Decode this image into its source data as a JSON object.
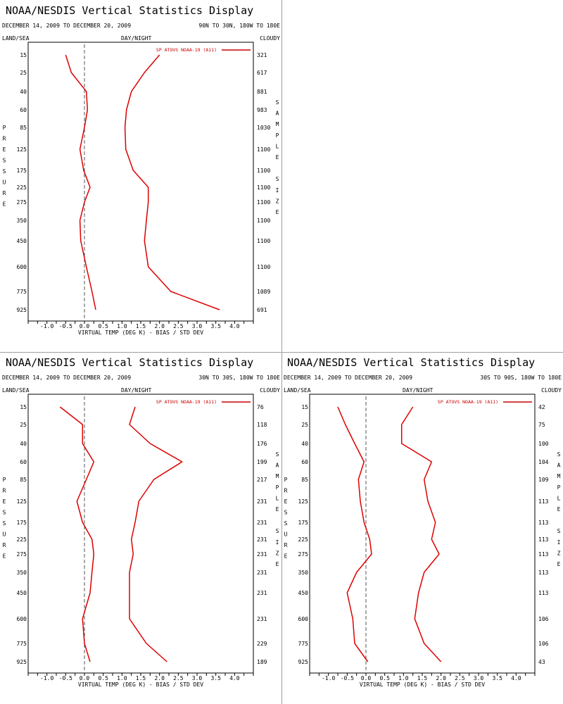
{
  "display_title": "NOAA/NESDIS Vertical Statistics Display",
  "date_range": "DECEMBER 14, 2009 TO DECEMBER 20, 2009",
  "col_labels": {
    "land_sea": "LAND/SEA",
    "day_night": "DAY/NIGHT",
    "cloudy": "CLOUDY"
  },
  "left_axis_label": "PRESSURE",
  "right_axis_label": "SAMPLE SIZE",
  "chart_data": [
    {
      "type": "line",
      "region": "90N TO 30N, 180W TO 180E",
      "xlabel": "VIRTUAL TEMP (DEG K) - BIAS / STD DEV",
      "ylabel": "PRESSURE",
      "xlim": [
        -1.5,
        4.5
      ],
      "x_ticks": [
        "-1.0",
        "-0.5",
        "0.0",
        "0.5",
        "1.0",
        "1.5",
        "2.0",
        "2.5",
        "3.0",
        "3.5",
        "4.0"
      ],
      "pressure_levels": [
        "15",
        "25",
        "40",
        "60",
        "85",
        "125",
        "175",
        "225",
        "275",
        "350",
        "450",
        "600",
        "775",
        "925"
      ],
      "sample_size": [
        "321",
        "617",
        "881",
        "983",
        "1030",
        "1100",
        "1100",
        "1100",
        "1100",
        "1100",
        "1100",
        "1100",
        "1089",
        "691"
      ],
      "legend": "SP ATOVS NOAA-19 (A11)",
      "series": [
        {
          "values": [
            -0.5,
            -0.35,
            0.05,
            0.08,
            0.0,
            -0.12,
            -0.02,
            0.15,
            0.0,
            -0.12,
            -0.1,
            0.05,
            0.2,
            0.3
          ]
        },
        {
          "values": [
            2.0,
            1.6,
            1.25,
            1.12,
            1.08,
            1.1,
            1.3,
            1.7,
            1.7,
            1.65,
            1.6,
            1.7,
            2.3,
            3.6
          ]
        }
      ]
    },
    {
      "type": "line",
      "region": "30N TO 30S, 180W TO 180E",
      "xlabel": "VIRTUAL TEMP (DEG K) - BIAS / STD DEV",
      "ylabel": "PRESSURE",
      "xlim": [
        -1.5,
        4.5
      ],
      "x_ticks": [
        "-1.0",
        "-0.5",
        "0.0",
        "0.5",
        "1.0",
        "1.5",
        "2.0",
        "2.5",
        "3.0",
        "3.5",
        "4.0"
      ],
      "pressure_levels": [
        "15",
        "25",
        "40",
        "60",
        "85",
        "125",
        "175",
        "225",
        "275",
        "350",
        "450",
        "600",
        "775",
        "925"
      ],
      "sample_size": [
        "76",
        "118",
        "176",
        "199",
        "217",
        "231",
        "231",
        "231",
        "231",
        "231",
        "231",
        "231",
        "229",
        "189"
      ],
      "legend": "SP ATOVS NOAA-19 (A11)",
      "series": [
        {
          "values": [
            -0.65,
            -0.05,
            -0.05,
            0.25,
            0.05,
            -0.2,
            -0.05,
            0.2,
            0.25,
            0.2,
            0.15,
            -0.05,
            0.0,
            0.15
          ]
        },
        {
          "values": [
            1.35,
            1.2,
            1.75,
            2.6,
            1.85,
            1.45,
            1.35,
            1.25,
            1.3,
            1.2,
            1.2,
            1.2,
            1.65,
            2.2
          ]
        }
      ]
    },
    {
      "type": "line",
      "region": "30S TO 90S, 180W TO 180E",
      "xlabel": "VIRTUAL TEMP (DEG K) - BIAS / STD DEV",
      "ylabel": "PRESSURE",
      "xlim": [
        -1.5,
        4.5
      ],
      "x_ticks": [
        "-1.0",
        "-0.5",
        "0.0",
        "0.5",
        "1.0",
        "1.5",
        "2.0",
        "2.5",
        "3.0",
        "3.5",
        "4.0"
      ],
      "pressure_levels": [
        "15",
        "25",
        "40",
        "60",
        "85",
        "125",
        "175",
        "225",
        "275",
        "350",
        "450",
        "600",
        "775",
        "925"
      ],
      "sample_size": [
        "42",
        "75",
        "100",
        "104",
        "109",
        "113",
        "113",
        "113",
        "113",
        "113",
        "113",
        "106",
        "106",
        "43"
      ],
      "legend": "SP ATOVS NOAA-19 (A11)",
      "series": [
        {
          "values": [
            -0.75,
            -0.55,
            -0.3,
            -0.05,
            -0.2,
            -0.15,
            -0.05,
            0.1,
            0.15,
            -0.25,
            -0.5,
            -0.35,
            -0.3,
            0.05
          ]
        },
        {
          "values": [
            1.25,
            0.95,
            0.95,
            1.75,
            1.55,
            1.65,
            1.85,
            1.75,
            1.95,
            1.55,
            1.4,
            1.3,
            1.55,
            2.0
          ]
        }
      ]
    }
  ]
}
